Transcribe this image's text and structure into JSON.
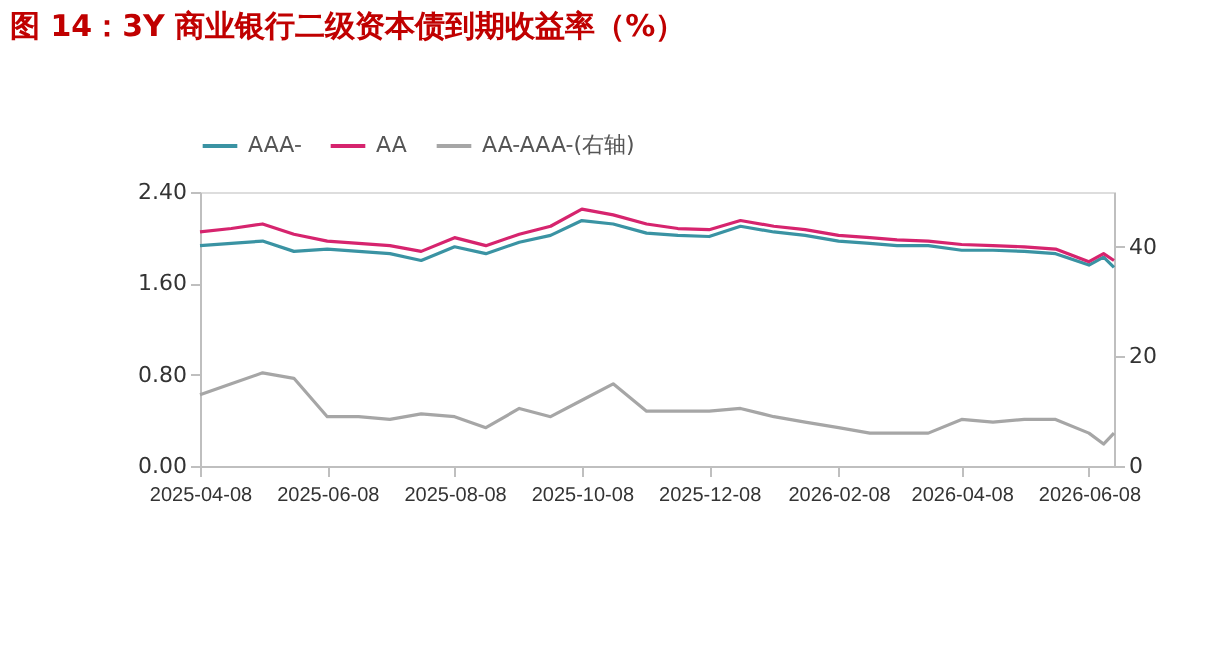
{
  "chart_data": {
    "type": "line",
    "title": "图 14：3Y 商业银行二级资本债到期收益率（%）",
    "x": [
      "2025-04-08",
      "2025-04-23",
      "2025-05-08",
      "2025-05-23",
      "2025-06-08",
      "2025-06-23",
      "2025-07-08",
      "2025-07-23",
      "2025-08-08",
      "2025-08-23",
      "2025-09-08",
      "2025-09-23",
      "2025-10-08",
      "2025-10-23",
      "2025-11-08",
      "2025-11-23",
      "2025-12-08",
      "2025-12-23",
      "2026-01-08",
      "2026-01-23",
      "2026-02-08",
      "2026-02-23",
      "2026-03-08",
      "2026-03-23",
      "2026-04-08",
      "2026-04-23",
      "2026-05-08",
      "2026-05-23",
      "2026-06-08",
      "2026-06-15",
      "2026-06-20"
    ],
    "series": [
      {
        "name": "AAA-",
        "color": "#3a93a3",
        "values": [
          1.93,
          1.95,
          1.97,
          1.88,
          1.9,
          1.88,
          1.86,
          1.8,
          1.92,
          1.86,
          1.96,
          2.02,
          2.15,
          2.12,
          2.04,
          2.02,
          2.01,
          2.1,
          2.05,
          2.02,
          1.97,
          1.95,
          1.93,
          1.93,
          1.89,
          1.89,
          1.88,
          1.86,
          1.76,
          1.83,
          1.74
        ]
      },
      {
        "name": "AA",
        "color": "#d6246e",
        "values": [
          2.05,
          2.08,
          2.12,
          2.03,
          1.97,
          1.95,
          1.93,
          1.88,
          2.0,
          1.93,
          2.03,
          2.1,
          2.25,
          2.2,
          2.12,
          2.08,
          2.07,
          2.15,
          2.1,
          2.07,
          2.02,
          2.0,
          1.98,
          1.97,
          1.94,
          1.93,
          1.92,
          1.9,
          1.79,
          1.86,
          1.8
        ]
      },
      {
        "name": "AA-AAA-(右轴)",
        "color": "#a6a6a6",
        "axis": "y2",
        "values": [
          13,
          15,
          17,
          16,
          9,
          9,
          8.5,
          9.5,
          9,
          7,
          10.5,
          9,
          12,
          15,
          10,
          10,
          10,
          10.5,
          9,
          8,
          7,
          6,
          6,
          6,
          8.5,
          8,
          8.5,
          8.5,
          6,
          4,
          6
        ]
      }
    ],
    "xlim": [
      "2025-04-08",
      "2026-06-20"
    ],
    "xticks": [
      {
        "value": "2025-04-08",
        "label": "2025-04-08"
      },
      {
        "value": "2025-06-08",
        "label": "2025-06-08"
      },
      {
        "value": "2025-08-08",
        "label": "2025-08-08"
      },
      {
        "value": "2025-10-08",
        "label": "2025-10-08"
      },
      {
        "value": "2025-12-08",
        "label": "2025-12-08"
      },
      {
        "value": "2026-02-08",
        "label": "2026-02-08"
      },
      {
        "value": "2026-04-08",
        "label": "2026-04-08"
      },
      {
        "value": "2026-06-08",
        "label": "2026-06-08"
      }
    ],
    "ylim": [
      0,
      2.4
    ],
    "yticks": [
      {
        "value": 0,
        "label": "0.00"
      },
      {
        "value": 0.8,
        "label": "0.80"
      },
      {
        "value": 1.6,
        "label": "1.60"
      },
      {
        "value": 2.4,
        "label": "2.40"
      }
    ],
    "y2lim": [
      0,
      50
    ],
    "y2ticks": [
      0,
      20,
      40
    ],
    "grid": false,
    "legend": "top",
    "line_style": "solid",
    "marker": "none"
  }
}
